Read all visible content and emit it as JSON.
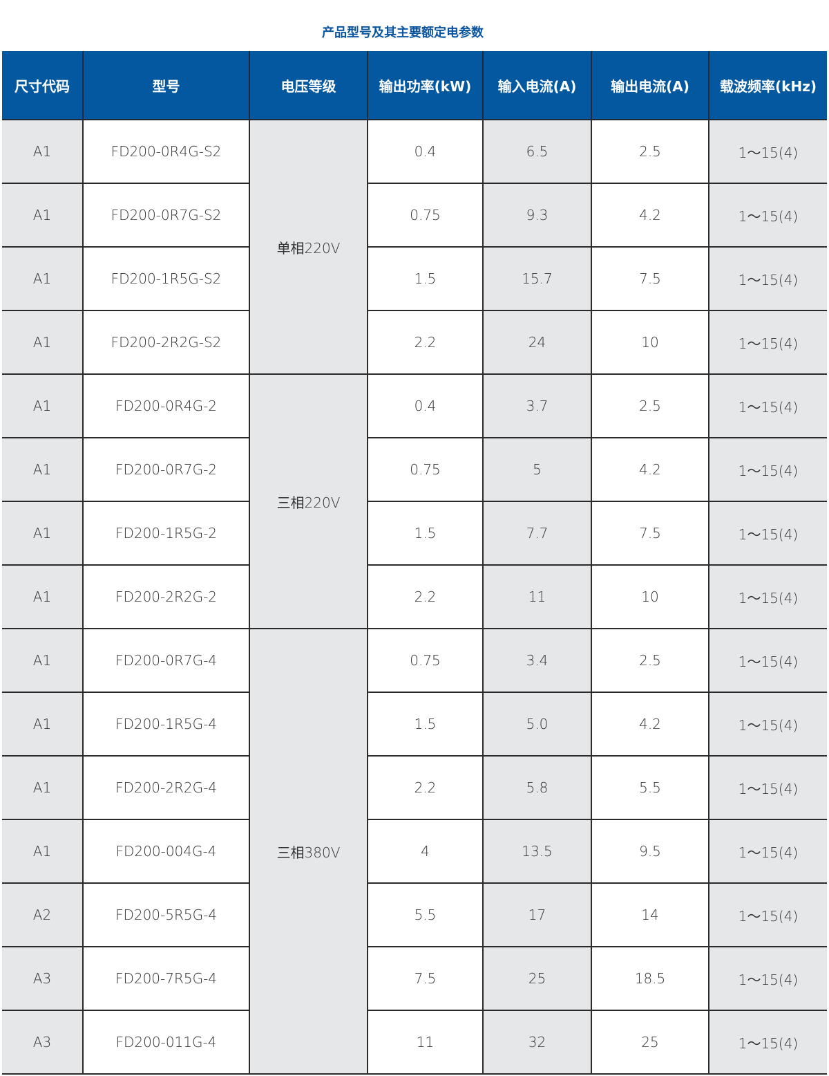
{
  "title": "产品型号及其主要额定电参数",
  "columns": [
    "尺寸代码",
    "型号",
    "电压等级",
    "输出功率(kW)",
    "输入电流(A)",
    "输出电流(A)",
    "载波频率(kHz)"
  ],
  "colors": {
    "header_bg": "#03589f",
    "title": "#0a55a0",
    "shaded_column": "#e6e7e9"
  },
  "voltage_groups": [
    {
      "label": "单相220V",
      "rows": 4
    },
    {
      "label": "三相220V",
      "rows": 4
    },
    {
      "label": "三相380V",
      "rows": 7
    }
  ],
  "rows": [
    {
      "size": "A1",
      "model": "FD200-0R4G-S2",
      "power": "0.4",
      "in": "6.5",
      "out": "2.5",
      "freq": "1～15(4)"
    },
    {
      "size": "A1",
      "model": "FD200-0R7G-S2",
      "power": "0.75",
      "in": "9.3",
      "out": "4.2",
      "freq": "1～15(4)"
    },
    {
      "size": "A1",
      "model": "FD200-1R5G-S2",
      "power": "1.5",
      "in": "15.7",
      "out": "7.5",
      "freq": "1～15(4)"
    },
    {
      "size": "A1",
      "model": "FD200-2R2G-S2",
      "power": "2.2",
      "in": "24",
      "out": "10",
      "freq": "1～15(4)"
    },
    {
      "size": "A1",
      "model": "FD200-0R4G-2",
      "power": "0.4",
      "in": "3.7",
      "out": "2.5",
      "freq": "1～15(4)"
    },
    {
      "size": "A1",
      "model": "FD200-0R7G-2",
      "power": "0.75",
      "in": "5",
      "out": "4.2",
      "freq": "1～15(4)"
    },
    {
      "size": "A1",
      "model": "FD200-1R5G-2",
      "power": "1.5",
      "in": "7.7",
      "out": "7.5",
      "freq": "1～15(4)"
    },
    {
      "size": "A1",
      "model": "FD200-2R2G-2",
      "power": "2.2",
      "in": "11",
      "out": "10",
      "freq": "1～15(4)"
    },
    {
      "size": "A1",
      "model": "FD200-0R7G-4",
      "power": "0.75",
      "in": "3.4",
      "out": "2.5",
      "freq": "1～15(4)"
    },
    {
      "size": "A1",
      "model": "FD200-1R5G-4",
      "power": "1.5",
      "in": "5.0",
      "out": "4.2",
      "freq": "1～15(4)"
    },
    {
      "size": "A1",
      "model": "FD200-2R2G-4",
      "power": "2.2",
      "in": "5.8",
      "out": "5.5",
      "freq": "1～15(4)"
    },
    {
      "size": "A1",
      "model": "FD200-004G-4",
      "power": "4",
      "in": "13.5",
      "out": "9.5",
      "freq": "1～15(4)"
    },
    {
      "size": "A2",
      "model": "FD200-5R5G-4",
      "power": "5.5",
      "in": "17",
      "out": "14",
      "freq": "1～15(4)"
    },
    {
      "size": "A3",
      "model": "FD200-7R5G-4",
      "power": "7.5",
      "in": "25",
      "out": "18.5",
      "freq": "1～15(4)"
    },
    {
      "size": "A3",
      "model": "FD200-011G-4",
      "power": "11",
      "in": "32",
      "out": "25",
      "freq": "1～15(4)"
    }
  ]
}
